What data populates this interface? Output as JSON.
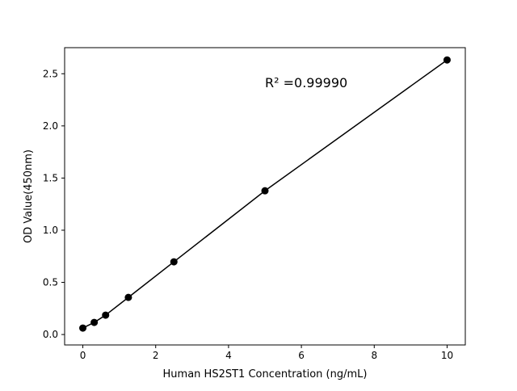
{
  "chart_data": {
    "type": "line",
    "title": "",
    "xlabel": "Human HS2ST1 Concentration (ng/mL)",
    "ylabel": "OD Value(450nm)",
    "annotation": "R² =0.99990",
    "xlim": [
      -0.5,
      10.5
    ],
    "ylim": [
      -0.1,
      2.75
    ],
    "xticks": [
      0,
      2,
      4,
      6,
      8,
      10
    ],
    "yticks": [
      0.0,
      0.5,
      1.0,
      1.5,
      2.0,
      2.5
    ],
    "xtick_labels": [
      "0",
      "2",
      "4",
      "6",
      "8",
      "10"
    ],
    "ytick_labels": [
      "0.0",
      "0.5",
      "1.0",
      "1.5",
      "2.0",
      "2.5"
    ],
    "grid": false,
    "series": [
      {
        "x": [
          0,
          0.3125,
          0.625,
          1.25,
          2.5,
          5,
          10
        ],
        "y": [
          0.062,
          0.116,
          0.186,
          0.356,
          0.697,
          1.378,
          2.632
        ],
        "color": "#000000",
        "marker": "circle"
      }
    ]
  }
}
